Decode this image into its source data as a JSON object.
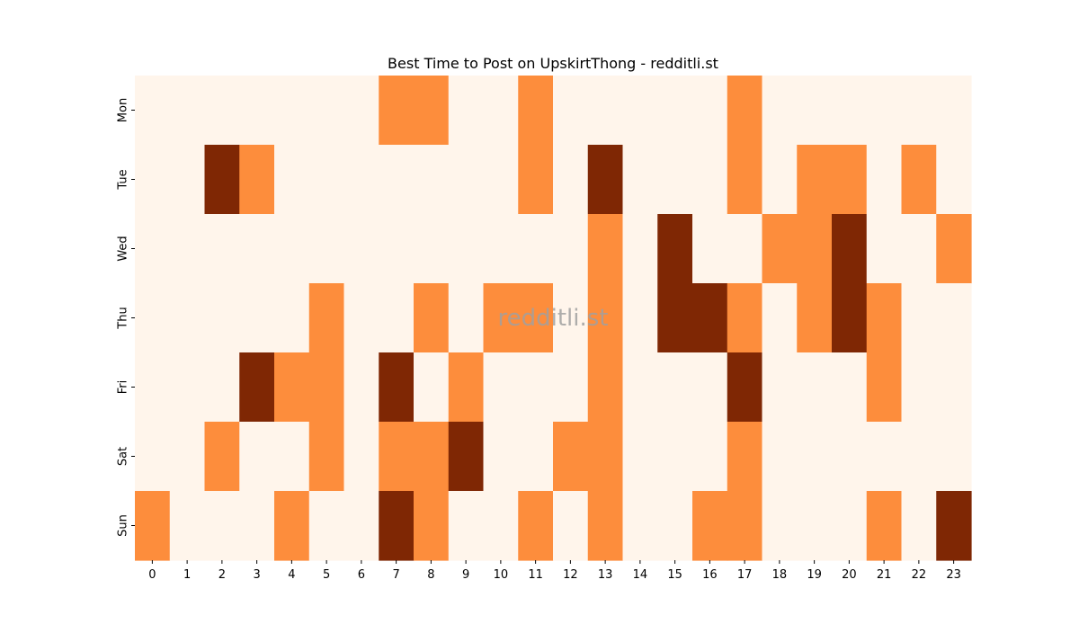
{
  "chart_data": {
    "type": "heatmap",
    "title": "Best Time to Post on UpskirtThong - redditli.st",
    "xlabel": "",
    "ylabel": "",
    "x_categories": [
      "0",
      "1",
      "2",
      "3",
      "4",
      "5",
      "6",
      "7",
      "8",
      "9",
      "10",
      "11",
      "12",
      "13",
      "14",
      "15",
      "16",
      "17",
      "18",
      "19",
      "20",
      "21",
      "22",
      "23"
    ],
    "y_categories": [
      "Mon",
      "Tue",
      "Wed",
      "Thu",
      "Fri",
      "Sat",
      "Sun"
    ],
    "values": [
      [
        0,
        0,
        0,
        0,
        0,
        0,
        0,
        1,
        1,
        0,
        0,
        1,
        0,
        0,
        0,
        0,
        0,
        1,
        0,
        0,
        0,
        0,
        0,
        0
      ],
      [
        0,
        0,
        2,
        1,
        0,
        0,
        0,
        0,
        0,
        0,
        0,
        1,
        0,
        2,
        0,
        0,
        0,
        1,
        0,
        1,
        1,
        0,
        1,
        0
      ],
      [
        0,
        0,
        0,
        0,
        0,
        0,
        0,
        0,
        0,
        0,
        0,
        0,
        0,
        1,
        0,
        2,
        0,
        0,
        1,
        1,
        2,
        0,
        0,
        1
      ],
      [
        0,
        0,
        0,
        0,
        0,
        1,
        0,
        0,
        1,
        0,
        1,
        1,
        0,
        1,
        0,
        2,
        2,
        1,
        0,
        1,
        2,
        1,
        0,
        0
      ],
      [
        0,
        0,
        0,
        2,
        1,
        1,
        0,
        2,
        0,
        1,
        0,
        0,
        0,
        1,
        0,
        0,
        0,
        2,
        0,
        0,
        0,
        1,
        0,
        0
      ],
      [
        0,
        0,
        1,
        0,
        0,
        1,
        0,
        1,
        1,
        2,
        0,
        0,
        1,
        1,
        0,
        0,
        0,
        1,
        0,
        0,
        0,
        0,
        0,
        0
      ],
      [
        1,
        0,
        0,
        0,
        1,
        0,
        0,
        2,
        1,
        0,
        0,
        1,
        0,
        1,
        0,
        0,
        1,
        1,
        0,
        0,
        0,
        1,
        0,
        2
      ]
    ],
    "colormap": [
      "#fff5eb",
      "#fd8d3c",
      "#7f2704"
    ],
    "grid": false,
    "legend": "none",
    "watermark": "redditli.st"
  }
}
